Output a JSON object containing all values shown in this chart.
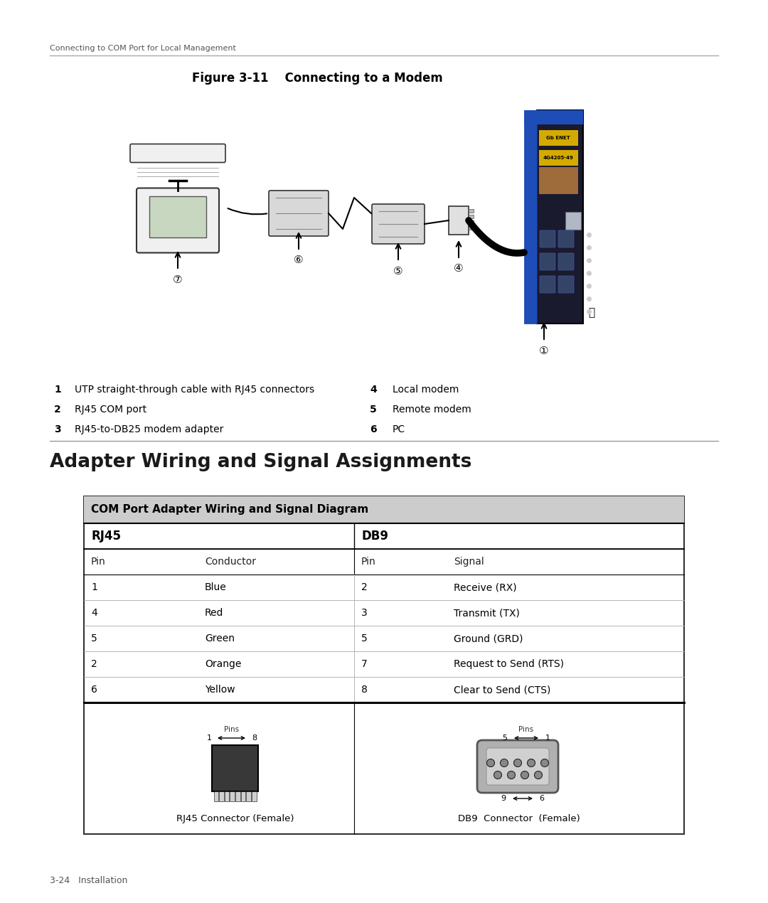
{
  "page_bg": "#ffffff",
  "header_text": "Connecting to COM Port for Local Management",
  "figure_title": "Figure 3-11    Connecting to a Modem",
  "section_title": "Adapter Wiring and Signal Assignments",
  "table_header": "COM Port Adapter Wiring and Signal Diagram",
  "table_header_bg": "#cccccc",
  "col_headers_left": "RJ45",
  "col_headers_right": "DB9",
  "sub_headers": [
    "Pin",
    "Conductor",
    "Pin",
    "Signal"
  ],
  "rows": [
    [
      "1",
      "Blue",
      "2",
      "Receive (RX)"
    ],
    [
      "4",
      "Red",
      "3",
      "Transmit (TX)"
    ],
    [
      "5",
      "Green",
      "5",
      "Ground (GRD)"
    ],
    [
      "2",
      "Orange",
      "7",
      "Request to Send (RTS)"
    ],
    [
      "6",
      "Yellow",
      "8",
      "Clear to Send (CTS)"
    ]
  ],
  "legend_items": [
    [
      "1",
      "UTP straight-through cable with RJ45 connectors",
      "4",
      "Local modem"
    ],
    [
      "2",
      "RJ45 COM port",
      "5",
      "Remote modem"
    ],
    [
      "3",
      "RJ45-to-DB25 modem adapter",
      "6",
      "PC"
    ]
  ],
  "footer_text": "3-24   Installation",
  "rj45_label": "RJ45 Connector (Female)",
  "db9_label": "DB9  Connector  (Female)"
}
